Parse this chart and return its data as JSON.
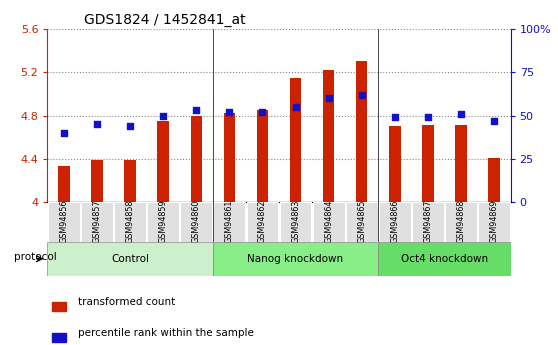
{
  "title": "GDS1824 / 1452841_at",
  "samples": [
    "GSM94856",
    "GSM94857",
    "GSM94858",
    "GSM94859",
    "GSM94860",
    "GSM94861",
    "GSM94862",
    "GSM94863",
    "GSM94864",
    "GSM94865",
    "GSM94866",
    "GSM94867",
    "GSM94868",
    "GSM94869"
  ],
  "bar_values": [
    4.33,
    4.39,
    4.39,
    4.75,
    4.8,
    4.82,
    4.85,
    5.15,
    5.22,
    5.31,
    4.7,
    4.71,
    4.71,
    4.41
  ],
  "dot_values": [
    40,
    45,
    44,
    50,
    53,
    52,
    52,
    55,
    60,
    62,
    49,
    49,
    51,
    47
  ],
  "bar_color": "#cc2200",
  "dot_color": "#1111cc",
  "ylim_left": [
    4.0,
    5.6
  ],
  "ylim_right": [
    0,
    100
  ],
  "yticks_left": [
    4.0,
    4.4,
    4.8,
    5.2,
    5.6
  ],
  "yticks_right": [
    0,
    25,
    50,
    75,
    100
  ],
  "ytick_labels_left": [
    "4",
    "4.4",
    "4.8",
    "5.2",
    "5.6"
  ],
  "ytick_labels_right": [
    "0",
    "25",
    "50",
    "75",
    "100%"
  ],
  "group_labels": [
    "Control",
    "Nanog knockdown",
    "Oct4 knockdown"
  ],
  "group_ranges": [
    [
      0,
      4
    ],
    [
      5,
      9
    ],
    [
      10,
      13
    ]
  ],
  "group_colors": [
    "#ccf0cc",
    "#88ee88",
    "#66dd66"
  ],
  "sample_cell_color": "#e0e0e0",
  "protocol_label": "protocol",
  "legend_labels": [
    "transformed count",
    "percentile rank within the sample"
  ],
  "legend_colors": [
    "#cc2200",
    "#1111cc"
  ]
}
